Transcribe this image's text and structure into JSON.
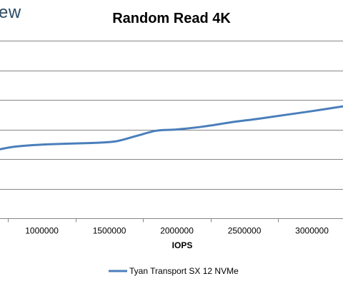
{
  "watermark": {
    "text": "ew"
  },
  "chart_data": {
    "type": "line",
    "title": "Random Read 4K",
    "xlabel": "IOPS",
    "ylabel": "",
    "xlim": [
      690000,
      3230000
    ],
    "ylim": [
      0,
      6
    ],
    "x_ticks": [
      1000000,
      1500000,
      2000000,
      2500000,
      3000000
    ],
    "x_tick_labels": [
      "1000000",
      "1500000",
      "2000000",
      "2500000",
      "3000000"
    ],
    "y_gridlines": [
      1,
      2,
      3,
      4,
      5,
      6
    ],
    "grid": true,
    "legend": "bottom",
    "colors": {
      "series": "#4a7ebb",
      "grid": "#868686",
      "axis": "#868686"
    },
    "series": [
      {
        "name": "Tyan Transport SX 12 NVMe",
        "x": [
          690000,
          800000,
          1000000,
          1200000,
          1400000,
          1550000,
          1700000,
          1850000,
          2000000,
          2200000,
          2400000,
          2600000,
          2800000,
          3000000,
          3230000
        ],
        "y": [
          2.33,
          2.42,
          2.49,
          2.52,
          2.55,
          2.6,
          2.78,
          2.96,
          3.0,
          3.1,
          3.24,
          3.36,
          3.49,
          3.62,
          3.78
        ]
      }
    ]
  }
}
